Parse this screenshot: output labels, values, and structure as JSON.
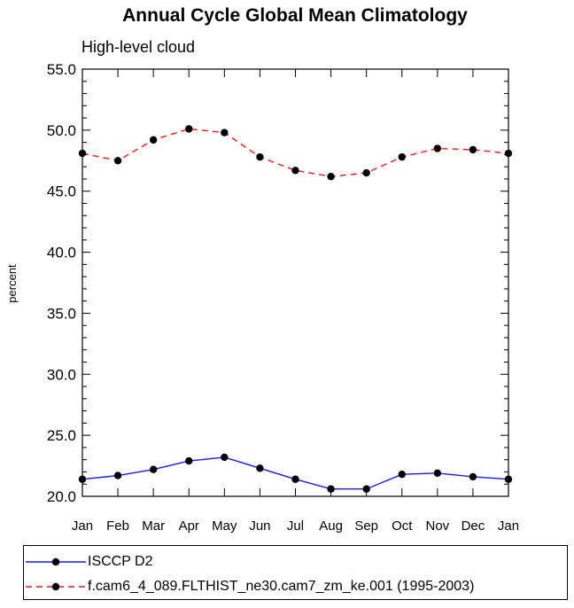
{
  "chart_data": {
    "type": "line",
    "title": "Annual Cycle Global Mean Climatology",
    "subtitle": "High-level cloud",
    "xlabel": "",
    "ylabel": "percent",
    "categories": [
      "Jan",
      "Feb",
      "Mar",
      "Apr",
      "May",
      "Jun",
      "Jul",
      "Aug",
      "Sep",
      "Oct",
      "Nov",
      "Dec",
      "Jan"
    ],
    "ylim": [
      20,
      55
    ],
    "yticks": [
      "20.0",
      "25.0",
      "30.0",
      "35.0",
      "40.0",
      "45.0",
      "50.0",
      "55.0"
    ],
    "series": [
      {
        "name": "ISCCP D2",
        "color": "#1a1aff",
        "dash": "solid",
        "values": [
          21.4,
          21.7,
          22.2,
          22.9,
          23.2,
          22.3,
          21.4,
          20.6,
          20.6,
          21.8,
          21.9,
          21.6,
          21.4
        ]
      },
      {
        "name": "f.cam6_4_089.FLTHIST_ne30.cam7_zm_ke.001 (1995-2003)",
        "color": "#ee1c1c",
        "dash": "dashed",
        "values": [
          48.1,
          47.5,
          49.2,
          50.1,
          49.8,
          47.8,
          46.7,
          46.2,
          46.5,
          47.8,
          48.5,
          48.4,
          48.1
        ]
      }
    ]
  }
}
